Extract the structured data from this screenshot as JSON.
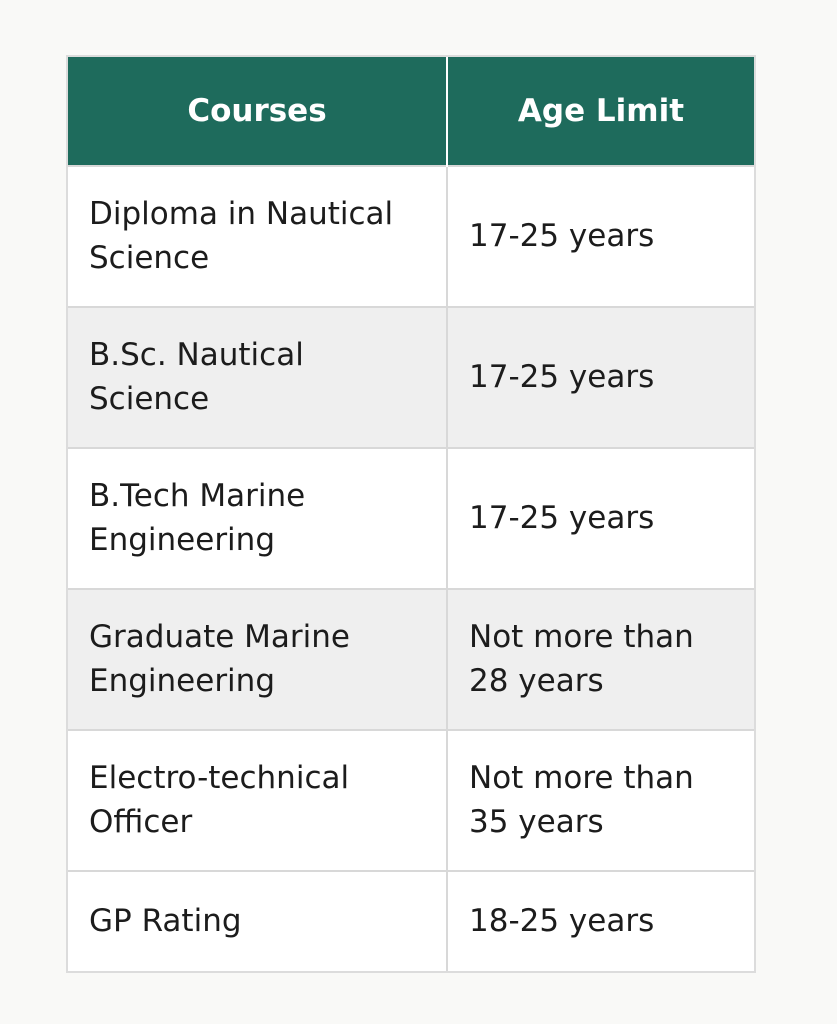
{
  "table": {
    "headers": [
      "Courses",
      "Age Limit"
    ],
    "rows": [
      [
        "Diploma in Nautical Science",
        "17-25 years"
      ],
      [
        "B.Sc. Nautical Science",
        "17-25 years"
      ],
      [
        "B.Tech Marine Engineering",
        "17-25 years"
      ],
      [
        "Graduate Marine Engineering",
        "Not more than 28 years"
      ],
      [
        "Electro-technical Officer",
        "Not more than 35 years"
      ],
      [
        "GP Rating",
        "18-25 years"
      ]
    ]
  },
  "colors": {
    "header_bg": "#1e6b5c",
    "header_text": "#ffffff",
    "row_alt_bg": "#efefef",
    "border": "#d8d8d8"
  }
}
